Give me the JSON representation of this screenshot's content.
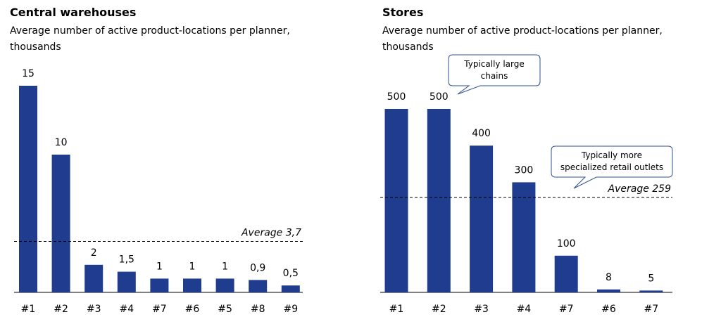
{
  "chart_data": [
    {
      "type": "bar",
      "title": "Central warehouses",
      "subtitle": "Average number of active product-locations per planner, thousands",
      "categories": [
        "#1",
        "#2",
        "#3",
        "#4",
        "#7",
        "#6",
        "#5",
        "#8",
        "#9"
      ],
      "values": [
        15,
        10,
        2,
        1.5,
        1,
        1,
        1,
        0.9,
        0.5
      ],
      "value_labels": [
        "15",
        "10",
        "2",
        "1,5",
        "1",
        "1",
        "1",
        "0,9",
        "0,5"
      ],
      "color": "#1f3c8f",
      "average": {
        "value": 3.7,
        "label": "Average 3,7"
      }
    },
    {
      "type": "bar",
      "title": "Stores",
      "subtitle": "Average number of active product-locations per planner, thousands",
      "categories": [
        "#1",
        "#2",
        "#3",
        "#4",
        "#7",
        "#6",
        "#7"
      ],
      "values": [
        500,
        500,
        400,
        300,
        100,
        8,
        5
      ],
      "color": "#1f3c8f",
      "average": {
        "value": 259,
        "label": "Average 259"
      },
      "annotations": [
        "Typically large chains",
        "Typically more specialized retail outlets"
      ]
    }
  ]
}
